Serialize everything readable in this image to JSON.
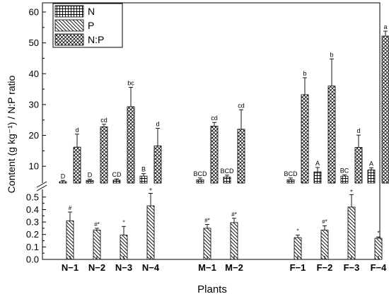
{
  "chart_data": {
    "type": "bar",
    "xlabel": "Plants",
    "ylabel": "Content (g kg⁻¹) / N:P ratio",
    "axis_break": true,
    "lower_ylim": [
      0,
      0.55
    ],
    "lower_yticks": [
      "0.0",
      "0.1",
      "0.2",
      "0.3",
      "0.4",
      "0.5"
    ],
    "upper_ylim": [
      5,
      60
    ],
    "upper_yticks": [
      "10",
      "20",
      "30",
      "40",
      "50",
      "60"
    ],
    "legend_position": "top-left",
    "categories": [
      "N−1",
      "N−2",
      "N−3",
      "N−4",
      "M−1",
      "M−2",
      "F−1",
      "F−2",
      "F−3",
      "F−4"
    ],
    "groups": [
      4,
      2,
      4
    ],
    "series": [
      {
        "name": "N",
        "pattern": "grid",
        "values": [
          5.0,
          5.4,
          5.5,
          6.8,
          5.6,
          6.5,
          5.6,
          8.2,
          6.8,
          8.8
        ],
        "errors": [
          0.4,
          0.4,
          0.4,
          0.8,
          0.6,
          0.6,
          0.6,
          1.4,
          0.4,
          0.7
        ],
        "labels": [
          "D",
          "D",
          "CD",
          "B",
          "BCD",
          "BCD",
          "BCD",
          "A",
          "BC",
          "A"
        ]
      },
      {
        "name": "P",
        "pattern": "diagonal",
        "values": [
          0.31,
          0.235,
          0.195,
          0.43,
          0.25,
          0.295,
          0.175,
          0.235,
          0.42,
          0.17
        ],
        "errors": [
          0.07,
          0.015,
          0.07,
          0.1,
          0.03,
          0.035,
          0.02,
          0.035,
          0.1,
          0.01
        ],
        "labels": [
          "#",
          "#*",
          "*",
          "+",
          "#*",
          "#*",
          "*",
          "#*",
          "+",
          "*"
        ]
      },
      {
        "name": "N:P",
        "pattern": "crosshatch",
        "values": [
          16.2,
          22.8,
          29.3,
          16.6,
          23.0,
          22.0,
          33.2,
          36.0,
          16.1,
          52.2
        ],
        "errors": [
          4.2,
          0.8,
          6.3,
          5.7,
          1.2,
          6.3,
          5.5,
          8.8,
          4.0,
          1.6
        ],
        "labels": [
          "d",
          "cd",
          "bc",
          "d",
          "cd",
          "cd",
          "b",
          "b",
          "d",
          "a"
        ]
      }
    ]
  }
}
